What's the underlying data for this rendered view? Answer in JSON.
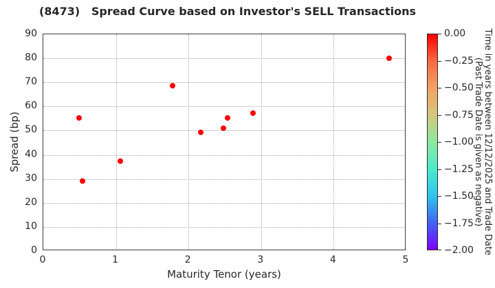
{
  "figure": {
    "title": "(8473)   Spread Curve based on Investor's SELL Transactions"
  },
  "chart_data": {
    "type": "scatter",
    "title": "(8473)   Spread Curve based on Investor's SELL Transactions",
    "xlabel": "Maturity Tenor (years)",
    "ylabel": "Spread (bp)",
    "xlim": [
      0,
      5
    ],
    "ylim": [
      0,
      90
    ],
    "xticks": [
      "0",
      "1",
      "2",
      "3",
      "4",
      "5"
    ],
    "yticks": [
      "0",
      "10",
      "20",
      "30",
      "40",
      "50",
      "60",
      "70",
      "80",
      "90"
    ],
    "grid": "dotted",
    "marker_color": "#ff0000",
    "points": [
      {
        "maturity": 0.49,
        "spread": 55.3,
        "color": "#ff0000"
      },
      {
        "maturity": 0.54,
        "spread": 29.1,
        "color": "#ff0000"
      },
      {
        "maturity": 1.06,
        "spread": 37.2,
        "color": "#ff0000"
      },
      {
        "maturity": 1.78,
        "spread": 68.5,
        "color": "#ff0000"
      },
      {
        "maturity": 2.17,
        "spread": 49.2,
        "color": "#ff0000"
      },
      {
        "maturity": 2.48,
        "spread": 51.0,
        "color": "#ff0000"
      },
      {
        "maturity": 2.54,
        "spread": 55.3,
        "color": "#ff0000"
      },
      {
        "maturity": 2.89,
        "spread": 57.2,
        "color": "#ff0000"
      },
      {
        "maturity": 4.76,
        "spread": 80.0,
        "color": "#ff0000"
      }
    ],
    "colorbar": {
      "vmax": "0.00",
      "vmin": "-2.00",
      "ticks": [
        "0.00",
        "−0.25",
        "−0.50",
        "−0.75",
        "−1.00",
        "−1.25",
        "−1.50",
        "−1.75",
        "−2.00"
      ],
      "label_line1": "Time in years between 12/12/2025 and Trade Date",
      "label_line2": "(Past Trade Date is given as negative)",
      "gradient": [
        {
          "pos": 0,
          "color": "#ff0000"
        },
        {
          "pos": 12.5,
          "color": "#f8693f"
        },
        {
          "pos": 25,
          "color": "#f2a263"
        },
        {
          "pos": 37.5,
          "color": "#d4c87e"
        },
        {
          "pos": 50,
          "color": "#8ce8a0"
        },
        {
          "pos": 62.5,
          "color": "#4deacd"
        },
        {
          "pos": 75,
          "color": "#30c4ee"
        },
        {
          "pos": 87.5,
          "color": "#3f64f1"
        },
        {
          "pos": 100,
          "color": "#8000ff"
        }
      ]
    }
  }
}
